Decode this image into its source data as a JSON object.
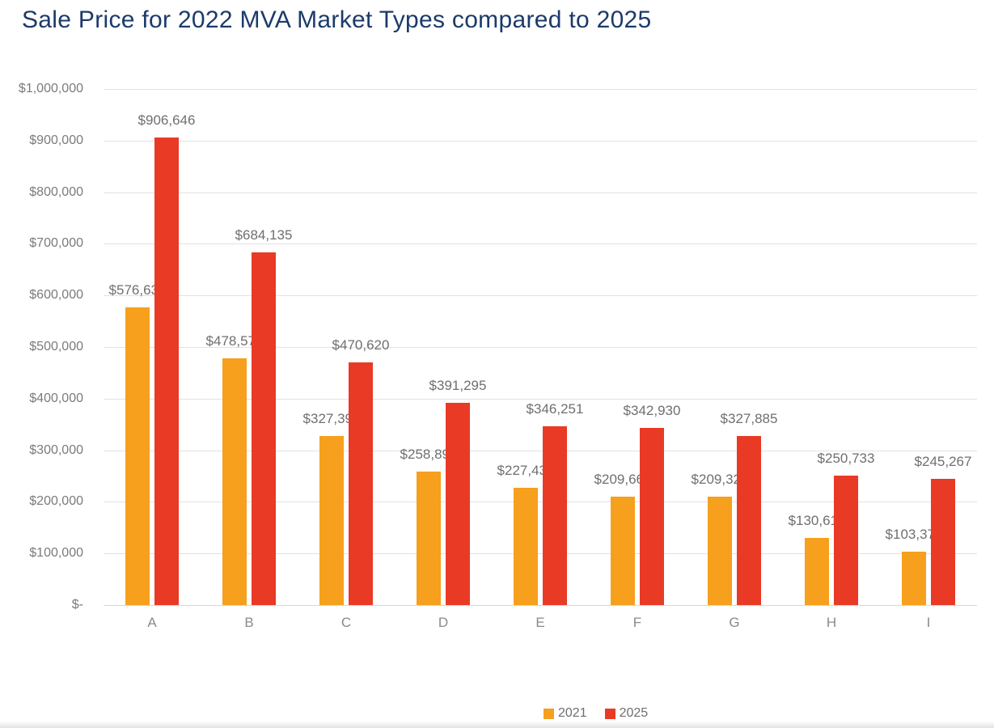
{
  "title": "Sale Price for 2022 MVA Market Types compared to 2025",
  "colors": {
    "title": "#1c3a6b",
    "series_2021": "#f6a01d",
    "series_2025": "#e93a26",
    "gridline": "#e2e2e2",
    "label_text": "#6f6f6f",
    "axis_text": "#7b7b7b"
  },
  "chart_data": {
    "type": "bar",
    "title": "Sale Price for 2022 MVA Market Types compared to 2025",
    "categories": [
      "A",
      "B",
      "C",
      "D",
      "E",
      "F",
      "G",
      "H",
      "I"
    ],
    "series": [
      {
        "name": "2021",
        "color": "#f6a01d",
        "values": [
          576635,
          478570,
          327392,
          258893,
          227432,
          209668,
          209328,
          130615,
          103375
        ],
        "labels": [
          "$576,635",
          "$478,570",
          "$327,392",
          "$258,893",
          "$227,432",
          "$209,668",
          "$209,328",
          "$130,615",
          "$103,375"
        ]
      },
      {
        "name": "2025",
        "color": "#e93a26",
        "values": [
          906646,
          684135,
          470620,
          391295,
          346251,
          342930,
          327885,
          250733,
          245267
        ],
        "labels": [
          "$906,646",
          "$684,135",
          "$470,620",
          "$391,295",
          "$346,251",
          "$342,930",
          "$327,885",
          "$250,733",
          "$245,267"
        ]
      }
    ],
    "xlabel": "",
    "ylabel": "",
    "ylim": [
      0,
      1000000
    ],
    "ytick_step": 100000,
    "ytick_labels_bottom_to_top": [
      "$-",
      "$100,000",
      "$200,000",
      "$300,000",
      "$400,000",
      "$500,000",
      "$600,000",
      "$700,000",
      "$800,000",
      "$900,000",
      "$1,000,000"
    ],
    "grid": true,
    "data_labels": true,
    "legend_position": "bottom"
  }
}
